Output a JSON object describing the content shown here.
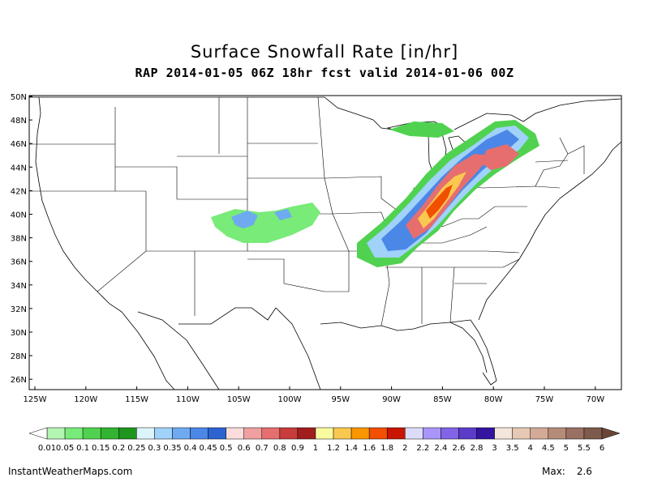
{
  "title": "Surface Snowfall Rate [in/hr]",
  "subtitle": "RAP 2014-01-05 06Z 18hr fcst valid 2014-01-06 00Z",
  "footer": {
    "site": "InstantWeatherMaps.com",
    "max_label": "Max:",
    "max_value": "2.6"
  },
  "map": {
    "lat_labels": [
      "50N",
      "48N",
      "46N",
      "44N",
      "42N",
      "40N",
      "38N",
      "36N",
      "34N",
      "32N",
      "30N",
      "28N",
      "26N"
    ],
    "lon_labels": [
      "125W",
      "120W",
      "115W",
      "110W",
      "105W",
      "100W",
      "95W",
      "90W",
      "85W",
      "80W",
      "75W",
      "70W"
    ]
  },
  "colorbar": {
    "labels": [
      "0.01",
      "0.05",
      "0.1",
      "0.15",
      "0.2",
      "0.25",
      "0.3",
      "0.35",
      "0.4",
      "0.45",
      "0.5",
      "0.6",
      "0.7",
      "0.8",
      "0.9",
      "1",
      "1.2",
      "1.4",
      "1.6",
      "1.8",
      "2",
      "2.2",
      "2.4",
      "2.6",
      "2.8",
      "3",
      "3.5",
      "4",
      "4.5",
      "5",
      "5.5",
      "6"
    ],
    "colors": [
      "#b4f5b4",
      "#78eb78",
      "#50d250",
      "#32b432",
      "#1e961e",
      "#dcf5fa",
      "#a0d2fa",
      "#6eaaf0",
      "#4b87e6",
      "#2d64d2",
      "#fadcdc",
      "#f0a0a0",
      "#e66e6e",
      "#c83c3c",
      "#a01e1e",
      "#fafaa0",
      "#fac850",
      "#fa9600",
      "#f05000",
      "#c81400",
      "#dcdcfa",
      "#aa96fa",
      "#8264e6",
      "#5a3cc8",
      "#3214a0",
      "#f5e6dc",
      "#e6c8b4",
      "#d2aa96",
      "#b48c78",
      "#9a7064",
      "#7d5a4b"
    ]
  }
}
